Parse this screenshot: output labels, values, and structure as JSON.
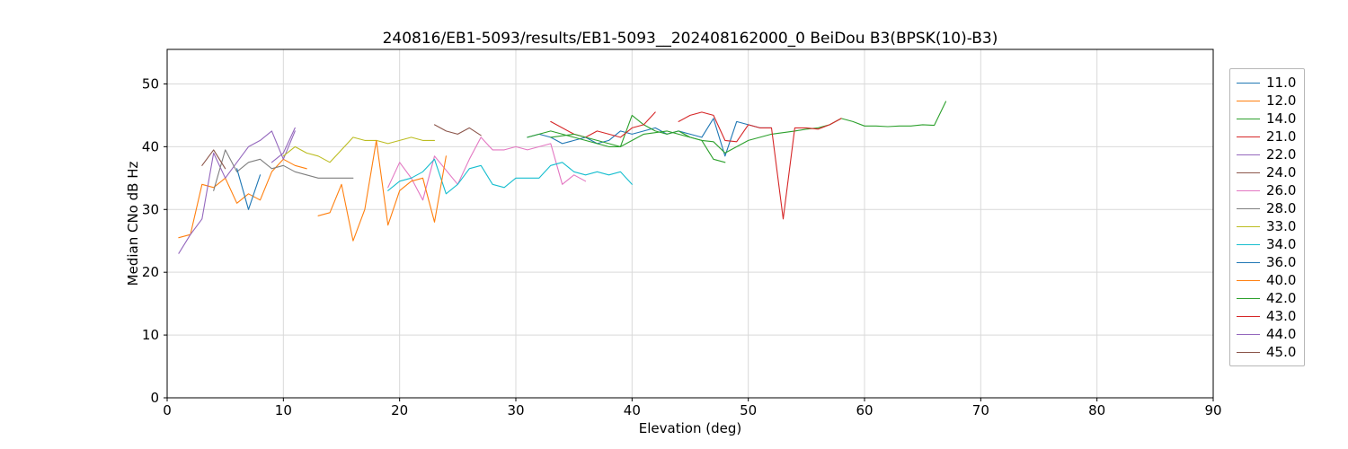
{
  "chart_data": {
    "type": "line",
    "title": "240816/EB1-5093/results/EB1-5093__202408162000_0 BeiDou B3(BPSK(10)-B3)",
    "xlabel": "Elevation (deg)",
    "ylabel": "Median CNo dB Hz",
    "xlim": [
      0,
      90
    ],
    "ylim": [
      0,
      55.5
    ],
    "xticks": [
      0,
      10,
      20,
      30,
      40,
      50,
      60,
      70,
      80,
      90
    ],
    "yticks": [
      0,
      10,
      20,
      30,
      40,
      50
    ],
    "grid": true,
    "grid_color": "#d9d9d9",
    "axis_color": "#000000",
    "legend_position": "right",
    "series": [
      {
        "name": "11.0",
        "color": "#1f77b4",
        "x": [
          31,
          32,
          33,
          34,
          35,
          36,
          37,
          38,
          39,
          40,
          41,
          42,
          43,
          44,
          45,
          46,
          47,
          48,
          49,
          50,
          51,
          52
        ],
        "y": [
          41.5,
          42,
          41.5,
          40.5,
          41,
          41.5,
          40.5,
          41,
          42.5,
          42,
          42.5,
          43,
          42,
          42.5,
          42,
          41.5,
          44.5,
          38.5,
          44,
          43.5,
          43,
          43
        ]
      },
      {
        "name": "12.0",
        "color": "#ff7f0e",
        "x": [
          1,
          2,
          3,
          4,
          5,
          6,
          7,
          8,
          9,
          10,
          11,
          12
        ],
        "y": [
          25.5,
          26,
          34,
          33.5,
          35,
          31,
          32.5,
          31.5,
          36,
          38,
          37,
          36.5
        ]
      },
      {
        "name": "14.0",
        "color": "#2ca02c",
        "x": [
          31,
          32,
          33,
          34,
          35,
          36,
          37,
          38,
          39,
          40,
          41,
          42,
          43,
          44,
          45,
          46,
          47,
          48
        ],
        "y": [
          41.5,
          42,
          42.5,
          42,
          41.5,
          41,
          40.5,
          40,
          40,
          45,
          43.5,
          42.5,
          42,
          42.5,
          41.5,
          41,
          38,
          37.5
        ]
      },
      {
        "name": "21.0",
        "color": "#d62728",
        "x": [
          33,
          34,
          35,
          36,
          37,
          38,
          39,
          40,
          41,
          42
        ],
        "y": [
          44,
          43,
          42,
          41.5,
          42.5,
          42,
          41.5,
          43,
          43.5,
          45.5
        ]
      },
      {
        "name": "22.0",
        "color": "#9467bd",
        "x": [
          1,
          2,
          3,
          4,
          5,
          6,
          7,
          8,
          9,
          10,
          11
        ],
        "y": [
          23,
          26,
          28.5,
          39,
          35,
          37.5,
          40,
          41,
          42.5,
          38,
          42.5
        ]
      },
      {
        "name": "24.0",
        "color": "#8c564b",
        "x": [
          23,
          24,
          25,
          26,
          27
        ],
        "y": [
          43.5,
          42.5,
          42,
          43,
          41.8
        ]
      },
      {
        "name": "26.0",
        "color": "#e377c2",
        "x": [
          19,
          20,
          21,
          22,
          23,
          25,
          26,
          27,
          28,
          29,
          30,
          31,
          32,
          33,
          34,
          35,
          36
        ],
        "y": [
          33.5,
          37.5,
          35,
          31.5,
          38.5,
          34,
          38,
          41.5,
          39.5,
          39.5,
          40,
          39.5,
          40,
          40.5,
          34,
          35.5,
          34.5
        ]
      },
      {
        "name": "28.0",
        "color": "#7f7f7f",
        "x": [
          4,
          5,
          6,
          7,
          8,
          9,
          10,
          11,
          12,
          13,
          14,
          15,
          16
        ],
        "y": [
          33,
          39.5,
          36,
          37.5,
          38,
          36.5,
          37,
          36,
          35.5,
          35,
          35,
          35,
          35
        ]
      },
      {
        "name": "33.0",
        "color": "#bcbd22",
        "x": [
          10,
          11,
          12,
          13,
          14,
          15,
          16,
          17,
          18,
          19,
          20,
          21,
          22,
          23
        ],
        "y": [
          38.5,
          40,
          39,
          38.5,
          37.5,
          39.5,
          41.5,
          41,
          41,
          40.5,
          41,
          41.5,
          41,
          41
        ]
      },
      {
        "name": "34.0",
        "color": "#17becf",
        "x": [
          19,
          20,
          21,
          22,
          23,
          24,
          25,
          26,
          27,
          28,
          29,
          30,
          31,
          32,
          33,
          34,
          35,
          36,
          37,
          38,
          39,
          40
        ],
        "y": [
          33,
          34.5,
          35,
          36,
          38,
          32.5,
          34,
          36.5,
          37,
          34,
          33.5,
          35,
          35,
          35,
          37,
          37.5,
          36,
          35.5,
          36,
          35.5,
          36,
          34
        ]
      },
      {
        "name": "36.0",
        "color": "#1f77b4",
        "x": [
          6,
          7,
          8
        ],
        "y": [
          36.5,
          30,
          35.5
        ]
      },
      {
        "name": "40.0",
        "color": "#ff7f0e",
        "x": [
          13,
          14,
          15,
          16,
          17,
          18,
          19,
          20,
          21,
          22,
          23,
          24
        ],
        "y": [
          29,
          29.5,
          34,
          25,
          30,
          41,
          27.5,
          33,
          34.5,
          35,
          28,
          38.5
        ]
      },
      {
        "name": "42.0",
        "color": "#2ca02c",
        "x": [
          33,
          35,
          37,
          39,
          41,
          43,
          45,
          46,
          47,
          48,
          50,
          52,
          54,
          55,
          56,
          57,
          58,
          59,
          60,
          61,
          62,
          63,
          64,
          65,
          66,
          67
        ],
        "y": [
          41.5,
          42,
          41,
          40,
          42,
          42.5,
          41.5,
          41,
          40.8,
          39,
          41,
          42,
          42.5,
          42.8,
          43,
          43.5,
          44.5,
          44,
          43.3,
          43.3,
          43.2,
          43.3,
          43.3,
          43.5,
          43.4,
          47.2
        ]
      },
      {
        "name": "43.0",
        "color": "#d62728",
        "x": [
          44,
          45,
          46,
          47,
          48,
          49,
          50,
          51,
          52,
          53,
          54,
          55,
          56,
          57,
          58
        ],
        "y": [
          44,
          45,
          45.5,
          45,
          41,
          40.8,
          43.5,
          43,
          43,
          28.5,
          43,
          43,
          42.8,
          43.5,
          44.5
        ]
      },
      {
        "name": "44.0",
        "color": "#9467bd",
        "x": [
          9,
          10,
          11
        ],
        "y": [
          37.5,
          39,
          43
        ]
      },
      {
        "name": "45.0",
        "color": "#8c564b",
        "x": [
          3,
          4,
          5
        ],
        "y": [
          37,
          39.5,
          36.5
        ]
      }
    ]
  }
}
